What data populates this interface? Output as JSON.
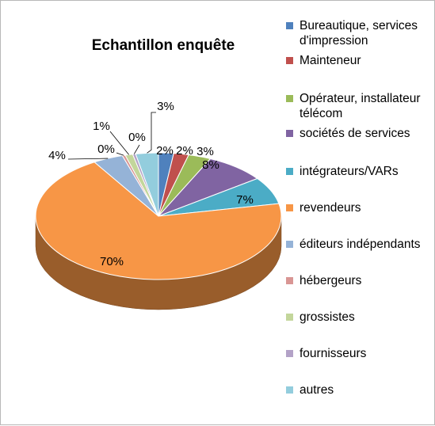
{
  "chart_data": {
    "type": "pie",
    "title": "Echantillon enquête",
    "three_d": true,
    "legend_position": "right",
    "slices": [
      {
        "label": "Bureautique, services d'impression",
        "value": 2,
        "value_label": "2%",
        "color": "#4f81bd"
      },
      {
        "label": "Mainteneur",
        "value": 2,
        "value_label": "2%",
        "color": "#c0504d"
      },
      {
        "label": "Opérateur, installateur télécom",
        "value": 3,
        "value_label": "3%",
        "color": "#9bbb59"
      },
      {
        "label": "sociétés de services",
        "value": 8,
        "value_label": "8%",
        "color": "#8064a2"
      },
      {
        "label": "intégrateurs/VARs",
        "value": 7,
        "value_label": "7%",
        "color": "#4bacc6"
      },
      {
        "label": "revendeurs",
        "value": 70,
        "value_label": "70%",
        "color": "#f79646"
      },
      {
        "label": "éditeurs indépendants",
        "value": 4,
        "value_label": "4%",
        "color": "#95b3d7"
      },
      {
        "label": "hébergeurs",
        "value": 0.4,
        "value_label": "0%",
        "color": "#d99694"
      },
      {
        "label": "grossistes",
        "value": 1,
        "value_label": "1%",
        "color": "#c3d69b"
      },
      {
        "label": "fournisseurs",
        "value": 0.4,
        "value_label": "0%",
        "color": "#b3a2c7"
      },
      {
        "label": "autres",
        "value": 3,
        "value_label": "3%",
        "color": "#93cddd"
      }
    ]
  }
}
